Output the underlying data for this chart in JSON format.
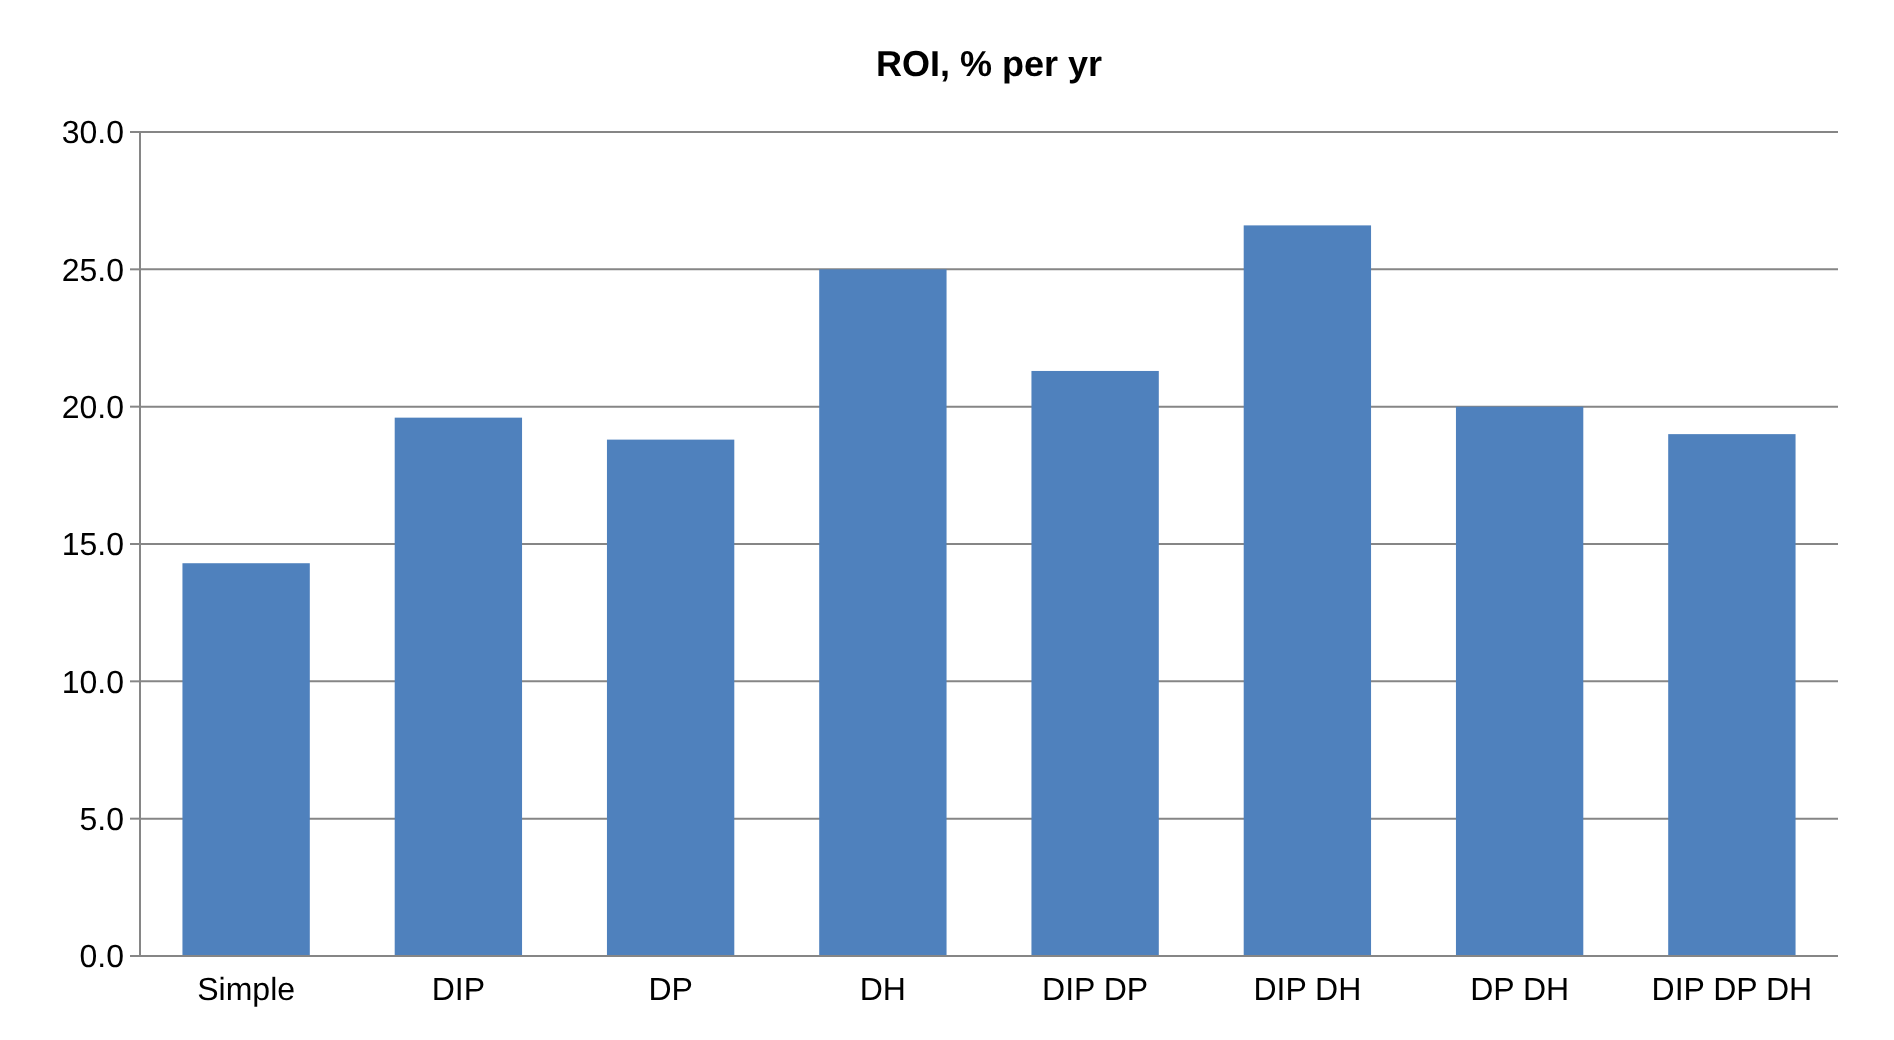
{
  "chart_data": {
    "type": "bar",
    "title": "ROI, % per yr",
    "categories": [
      "Simple",
      "DIP",
      "DP",
      "DH",
      "DIP DP",
      "DIP DH",
      "DP DH",
      "DIP DP DH"
    ],
    "values": [
      14.3,
      19.6,
      18.8,
      25.0,
      21.3,
      26.6,
      20.0,
      19.0
    ],
    "color": "#4f81bd",
    "ylim": [
      0,
      30
    ],
    "yticks": [
      {
        "value": 0,
        "label": "0.0"
      },
      {
        "value": 5,
        "label": "5.0"
      },
      {
        "value": 10,
        "label": "10.0"
      },
      {
        "value": 15,
        "label": "15.0"
      },
      {
        "value": 20,
        "label": "20.0"
      },
      {
        "value": 25,
        "label": "25.0"
      },
      {
        "value": 30,
        "label": "30.0"
      }
    ],
    "grid": "y"
  }
}
